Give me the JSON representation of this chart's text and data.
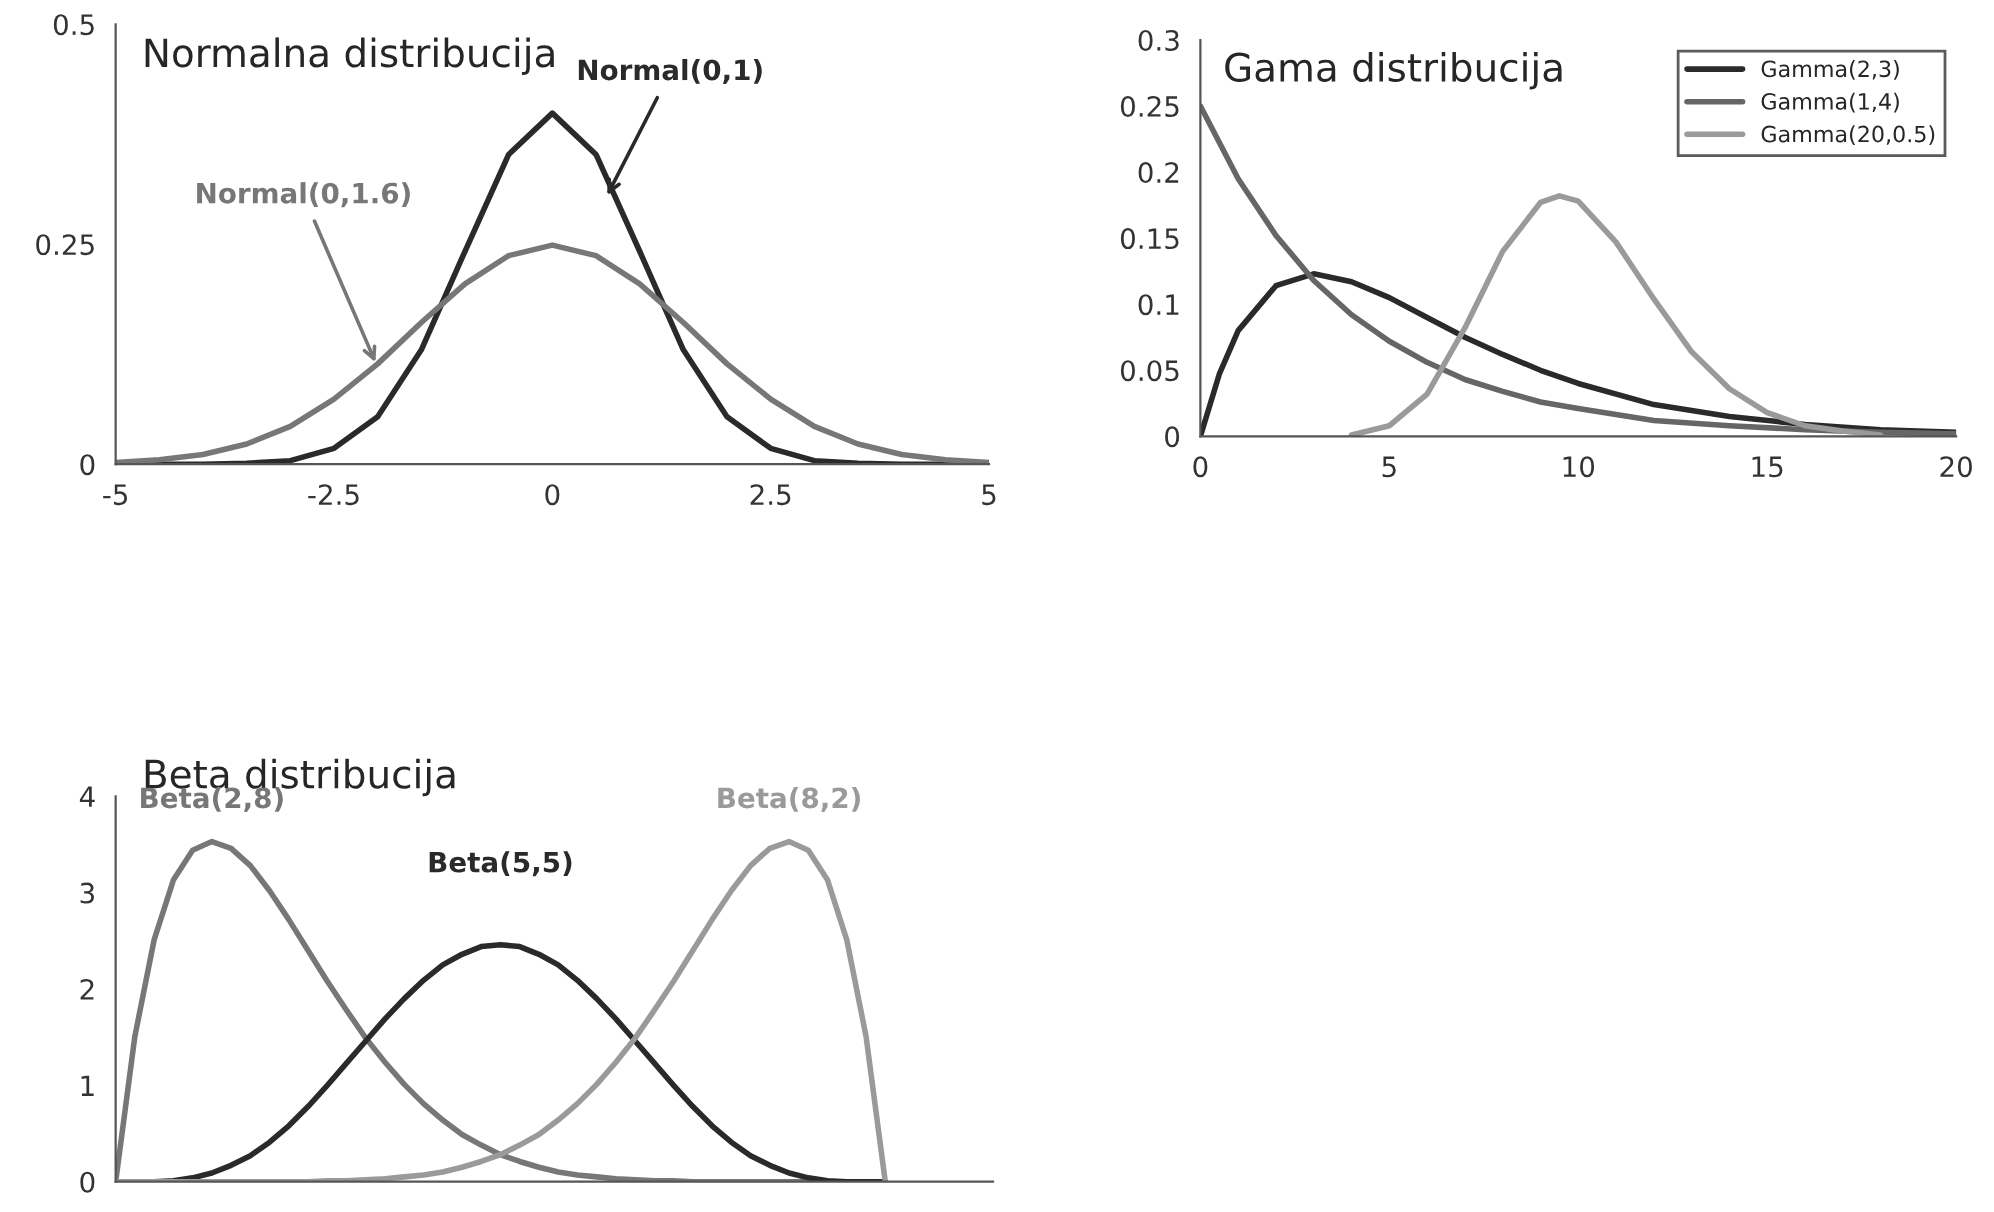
{
  "chart_data": [
    {
      "type": "line",
      "title": "Normalna distribucija",
      "xlim": [
        -5,
        5
      ],
      "xticks": [
        -5,
        -2.5,
        0,
        2.5,
        5
      ],
      "ylim": [
        0,
        0.5
      ],
      "yticks": [
        0,
        0.25,
        0.5
      ],
      "legend": false,
      "marker": "none",
      "line_style": "solid",
      "series": [
        {
          "name": "Normal(0,1)",
          "color": "#2a2a2a",
          "x": [
            -5,
            -4.5,
            -4,
            -3.5,
            -3,
            -2.5,
            -2,
            -1.5,
            -1,
            -0.5,
            0,
            0.5,
            1,
            1.5,
            2,
            2.5,
            3,
            3.5,
            4,
            4.5,
            5
          ],
          "values": [
            0,
            0,
            0,
            0.001,
            0.004,
            0.018,
            0.054,
            0.13,
            0.242,
            0.352,
            0.399,
            0.352,
            0.242,
            0.13,
            0.054,
            0.018,
            0.004,
            0.001,
            0,
            0,
            0
          ]
        },
        {
          "name": "Normal(0,1.6)",
          "color": "#777777",
          "x": [
            -5,
            -4.5,
            -4,
            -3.5,
            -3,
            -2.5,
            -2,
            -1.5,
            -1,
            -0.5,
            0,
            0.5,
            1,
            1.5,
            2,
            2.5,
            3,
            3.5,
            4,
            4.5,
            5
          ],
          "values": [
            0.002,
            0.005,
            0.011,
            0.023,
            0.043,
            0.074,
            0.114,
            0.161,
            0.205,
            0.237,
            0.249,
            0.237,
            0.205,
            0.161,
            0.114,
            0.074,
            0.043,
            0.023,
            0.011,
            0.005,
            0.002
          ]
        }
      ]
    },
    {
      "type": "line",
      "title": "Gama distribucija",
      "xlim": [
        0,
        20
      ],
      "xticks": [
        0,
        5,
        10,
        15,
        20
      ],
      "ylim": [
        0,
        0.3
      ],
      "yticks": [
        0,
        0.05,
        0.1,
        0.15,
        0.2,
        0.25,
        0.3
      ],
      "legend": "top right",
      "marker": "none",
      "line_style": "solid",
      "series": [
        {
          "name": "Gamma(2,3)",
          "color": "#2a2a2a",
          "x": [
            0,
            0.5,
            1,
            2,
            3,
            4,
            5,
            6,
            7,
            8,
            9,
            10,
            12,
            14,
            16,
            18,
            20
          ],
          "values": [
            0,
            0.047,
            0.08,
            0.114,
            0.123,
            0.117,
            0.105,
            0.09,
            0.075,
            0.062,
            0.05,
            0.04,
            0.024,
            0.015,
            0.009,
            0.005,
            0.003
          ]
        },
        {
          "name": "Gamma(1,4)",
          "color": "#666666",
          "x": [
            0,
            1,
            2,
            3,
            4,
            5,
            6,
            7,
            8,
            9,
            10,
            12,
            14,
            16,
            18,
            20
          ],
          "values": [
            0.25,
            0.195,
            0.152,
            0.118,
            0.092,
            0.072,
            0.056,
            0.043,
            0.034,
            0.026,
            0.021,
            0.012,
            0.008,
            0.005,
            0.003,
            0.002
          ]
        },
        {
          "name": "Gamma(20,0.5)",
          "color": "#9a9a9a",
          "x": [
            4,
            5,
            6,
            7,
            8,
            9,
            9.5,
            10,
            11,
            12,
            13,
            14,
            15,
            16,
            17,
            18
          ],
          "values": [
            0.001,
            0.008,
            0.032,
            0.082,
            0.14,
            0.177,
            0.182,
            0.178,
            0.147,
            0.104,
            0.064,
            0.036,
            0.018,
            0.008,
            0.004,
            0.001
          ]
        }
      ]
    },
    {
      "type": "line",
      "title": "Beta distribucija",
      "categories": [
        null,
        null,
        null,
        null,
        null,
        null,
        null,
        null,
        null,
        null,
        null,
        null,
        null,
        null,
        null,
        null,
        null,
        null,
        null,
        null,
        null,
        null,
        null,
        null,
        null,
        null,
        null,
        null,
        null,
        null,
        null,
        null,
        null,
        null,
        null,
        null,
        null,
        null,
        null,
        null,
        null
      ],
      "ylim": [
        0,
        4
      ],
      "yticks": [
        0,
        1,
        2,
        3,
        4
      ],
      "legend": false,
      "marker": "none",
      "line_style": "solid",
      "series": [
        {
          "name": "Beta(2,8)",
          "color": "#777777",
          "values": [
            0,
            1.51,
            2.51,
            3.13,
            3.44,
            3.53,
            3.46,
            3.28,
            3.02,
            2.72,
            2.4,
            2.08,
            1.78,
            1.49,
            1.24,
            1.01,
            0.81,
            0.64,
            0.49,
            0.38,
            0.28,
            0.21,
            0.15,
            0.1,
            0.07,
            0.05,
            0.03,
            0.02,
            0.01,
            0.01,
            0,
            0,
            0,
            0,
            0,
            0,
            0,
            0,
            0,
            0,
            0
          ]
        },
        {
          "name": "Beta(5,5)",
          "color": "#2a2a2a",
          "values": [
            0,
            0,
            0,
            0.01,
            0.04,
            0.09,
            0.17,
            0.27,
            0.41,
            0.58,
            0.78,
            1.0,
            1.23,
            1.46,
            1.69,
            1.9,
            2.09,
            2.25,
            2.36,
            2.44,
            2.46,
            2.44,
            2.36,
            2.25,
            2.09,
            1.9,
            1.69,
            1.46,
            1.23,
            1.0,
            0.78,
            0.58,
            0.41,
            0.27,
            0.17,
            0.09,
            0.04,
            0.01,
            0,
            0,
            0
          ]
        },
        {
          "name": "Beta(8,2)",
          "color": "#9a9a9a",
          "values": [
            0,
            0,
            0,
            0,
            0,
            0,
            0,
            0,
            0,
            0,
            0,
            0.01,
            0.01,
            0.02,
            0.03,
            0.05,
            0.07,
            0.1,
            0.15,
            0.21,
            0.28,
            0.38,
            0.49,
            0.64,
            0.81,
            1.01,
            1.24,
            1.49,
            1.78,
            2.08,
            2.4,
            2.72,
            3.02,
            3.28,
            3.46,
            3.53,
            3.44,
            3.13,
            2.51,
            1.51,
            0
          ]
        }
      ]
    }
  ]
}
